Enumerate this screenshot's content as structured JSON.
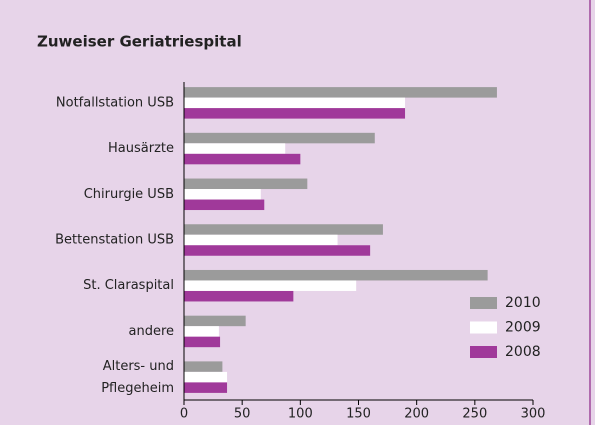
{
  "chart_data": {
    "type": "bar",
    "orientation": "horizontal",
    "title": "Zuweiser Geriatriespital",
    "categories": [
      "Notfallstation USB",
      "Hausärzte",
      "Chirurgie USB",
      "Bettenstation USB",
      "St. Claraspital",
      "andere",
      "Alters- und\nPflegeheim"
    ],
    "series": [
      {
        "name": "2010",
        "color": "#9b9b9b",
        "values": [
          269,
          164,
          106,
          171,
          261,
          53,
          33
        ]
      },
      {
        "name": "2009",
        "color": "#ffffff",
        "values": [
          190,
          87,
          66,
          132,
          148,
          30,
          37
        ]
      },
      {
        "name": "2008",
        "color": "#a0399a",
        "values": [
          190,
          100,
          69,
          160,
          94,
          31,
          37
        ]
      }
    ],
    "xlim": [
      0,
      300
    ],
    "xticks": [
      0,
      50,
      100,
      150,
      200,
      250,
      300
    ],
    "legend": "lower right"
  }
}
